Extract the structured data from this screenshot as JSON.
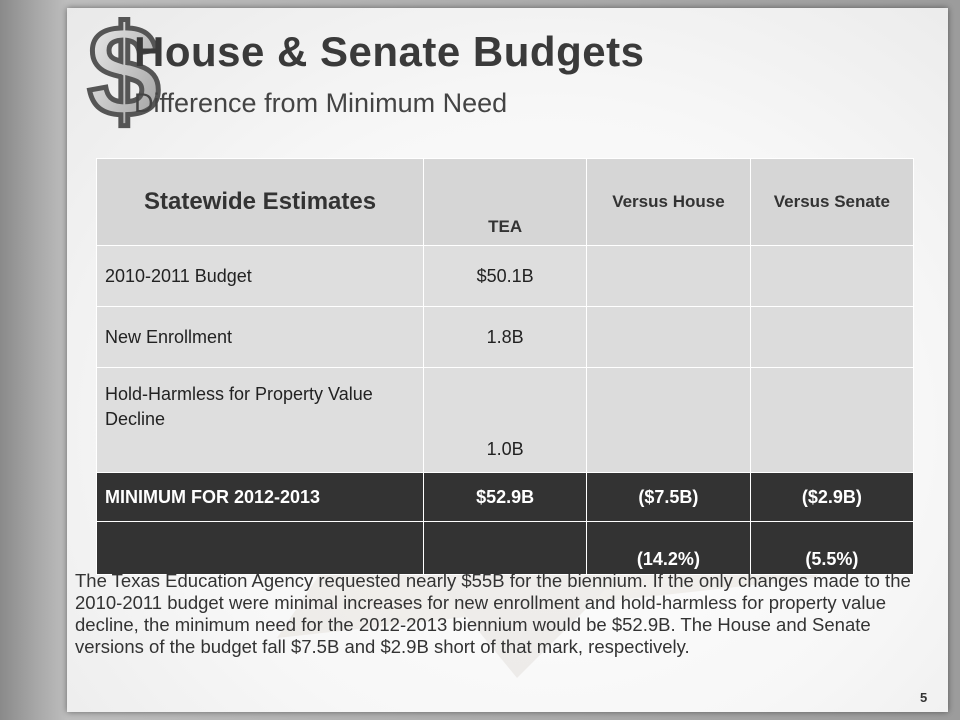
{
  "header": {
    "title": "House & Senate Budgets",
    "subtitle": "Difference from Minimum Need"
  },
  "table": {
    "headers": {
      "col0": "Statewide Estimates",
      "col1": "TEA",
      "col2": "Versus House",
      "col3": "Versus Senate"
    },
    "rows": [
      {
        "label": "2010-2011 Budget",
        "tea": "$50.1B",
        "house": "",
        "senate": ""
      },
      {
        "label": "New Enrollment",
        "tea": "1.8B",
        "house": "",
        "senate": ""
      },
      {
        "label": "Hold-Harmless for Property Value Decline",
        "tea": "1.0B",
        "house": "",
        "senate": ""
      }
    ],
    "minimum": {
      "label": "MINIMUM FOR 2012-2013",
      "tea": "$52.9B",
      "house": "($7.5B)",
      "senate": "($2.9B)",
      "house_pct": "(14.2%)",
      "senate_pct": "(5.5%)"
    }
  },
  "body": {
    "paragraph": "The Texas Education Agency requested nearly $55B for the biennium.  If the only changes made to the 2010-2011 budget were minimal increases for new enrollment and hold-harmless for property value decline, the minimum need for the 2012-2013 biennium would be $52.9B.  The House and Senate versions of the budget fall $7.5B and $2.9B short of that mark, respectively."
  },
  "footer": {
    "page_number": "5"
  },
  "colors": {
    "header_cell": "#d6d6d6",
    "body_cell": "#dedede",
    "dark_row": "#333333",
    "title_text": "#3a3a3a"
  },
  "icons": {
    "logo": "dollar-sign-icon"
  }
}
